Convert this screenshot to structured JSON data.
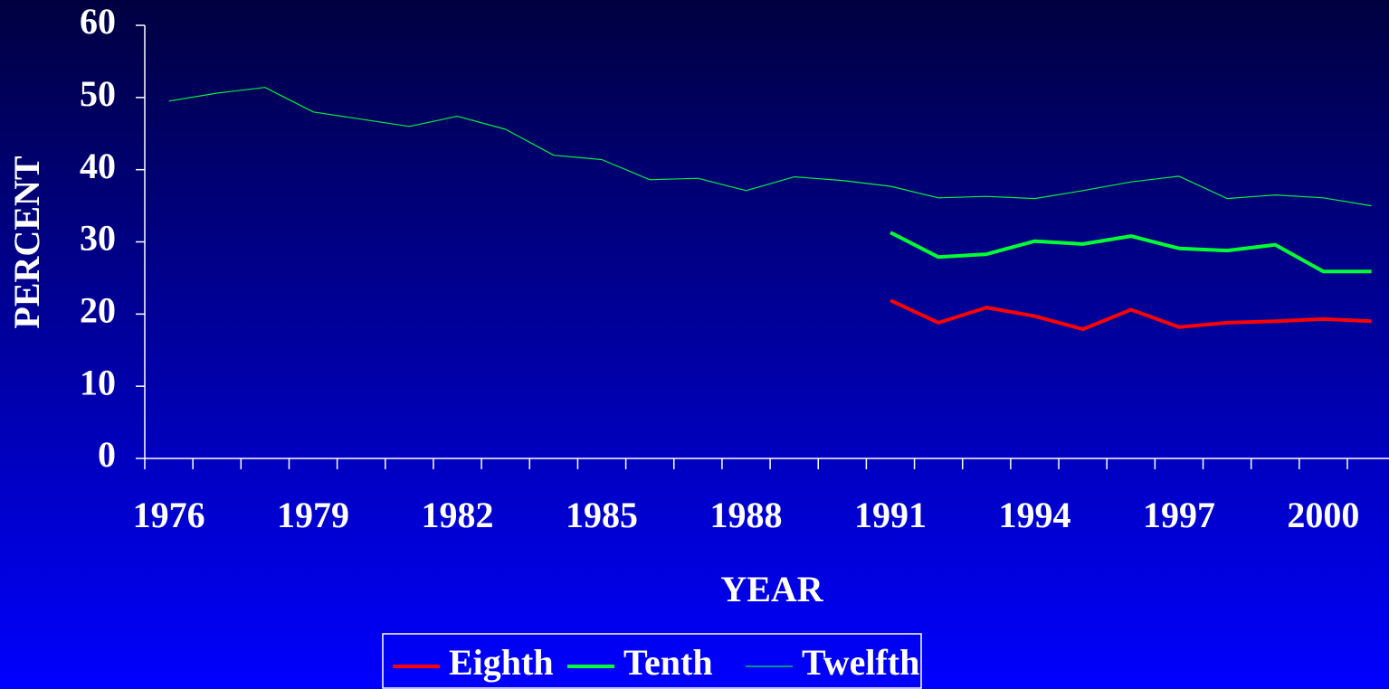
{
  "chart_data": {
    "type": "line",
    "x_label": "YEAR",
    "y_label": "PERCENT",
    "categories": [
      "1976",
      null,
      null,
      "1979",
      null,
      null,
      "1982",
      null,
      null,
      "1985",
      null,
      null,
      "1988",
      null,
      null,
      "1991",
      null,
      null,
      "1994",
      null,
      null,
      "1997",
      null,
      null,
      "2000",
      null
    ],
    "series": [
      {
        "name": "Eighth",
        "color": "#ff0000",
        "width": 4,
        "values": [
          null,
          null,
          null,
          null,
          null,
          null,
          null,
          null,
          null,
          null,
          null,
          null,
          null,
          null,
          null,
          21.9,
          18.8,
          20.9,
          19.7,
          17.9,
          20.6,
          18.2,
          18.8,
          19.0,
          19.3,
          19.0
        ]
      },
      {
        "name": "Tenth",
        "color": "#00ff33",
        "width": 4,
        "values": [
          null,
          null,
          null,
          null,
          null,
          null,
          null,
          null,
          null,
          null,
          null,
          null,
          null,
          null,
          null,
          31.3,
          27.9,
          28.3,
          30.1,
          29.7,
          30.8,
          29.1,
          28.8,
          29.6,
          25.9,
          25.9
        ]
      },
      {
        "name": "Twelfth",
        "color": "#00ee44",
        "width": 1.2,
        "values": [
          49.5,
          50.6,
          51.4,
          48.0,
          47.0,
          46.0,
          47.4,
          45.6,
          42.0,
          41.4,
          38.6,
          38.8,
          37.1,
          39.0,
          38.5,
          37.7,
          36.1,
          36.3,
          36.0,
          37.1,
          38.3,
          39.1,
          36.0,
          36.5,
          36.1,
          35.0
        ]
      }
    ],
    "ylim": [
      0,
      60
    ],
    "yticks": [
      0,
      10,
      20,
      30,
      40,
      50,
      60
    ],
    "grid": false,
    "legend": "bottom"
  }
}
